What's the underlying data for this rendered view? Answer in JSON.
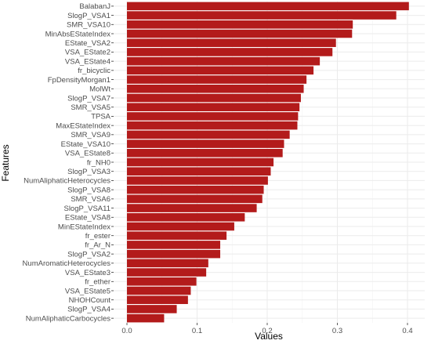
{
  "chart_data": {
    "type": "bar",
    "orientation": "horizontal",
    "xlabel": "Values",
    "ylabel": "Features",
    "xlim": [
      0,
      0.41
    ],
    "xticks": [
      0.0,
      0.1,
      0.2,
      0.3,
      0.4
    ],
    "xtick_labels": [
      "0.0",
      "0.1",
      "0.2",
      "0.3",
      "0.4"
    ],
    "grid": true,
    "legend": "none",
    "colors": {
      "bar": "#b31b1b",
      "panel": "#ffffff",
      "grid": "#ebebeb"
    },
    "categories": [
      "BalabanJ",
      "SlogP_VSA1",
      "SMR_VSA10",
      "MinAbsEStateIndex",
      "EState_VSA2",
      "VSA_EState2",
      "VSA_EState4",
      "fr_bicyclic",
      "FpDensityMorgan1",
      "MolWt",
      "SlogP_VSA7",
      "SMR_VSA5",
      "TPSA",
      "MaxEStateIndex",
      "SMR_VSA9",
      "EState_VSA10",
      "VSA_EState8",
      "fr_NH0",
      "SlogP_VSA3",
      "NumAliphaticHeterocycles",
      "SlogP_VSA8",
      "SMR_VSA6",
      "SlogP_VSA11",
      "EState_VSA8",
      "MinEStateIndex",
      "fr_ester",
      "fr_Ar_N",
      "SlogP_VSA2",
      "NumAromaticHeterocycles",
      "VSA_EState3",
      "fr_ether",
      "VSA_EState5",
      "NHOHCount",
      "SlogP_VSA4",
      "NumAliphaticCarbocycles"
    ],
    "values": [
      0.402,
      0.384,
      0.322,
      0.321,
      0.298,
      0.293,
      0.275,
      0.266,
      0.256,
      0.252,
      0.248,
      0.246,
      0.244,
      0.243,
      0.232,
      0.224,
      0.222,
      0.209,
      0.205,
      0.201,
      0.195,
      0.193,
      0.185,
      0.168,
      0.153,
      0.142,
      0.133,
      0.133,
      0.116,
      0.113,
      0.099,
      0.091,
      0.087,
      0.071,
      0.053
    ]
  }
}
